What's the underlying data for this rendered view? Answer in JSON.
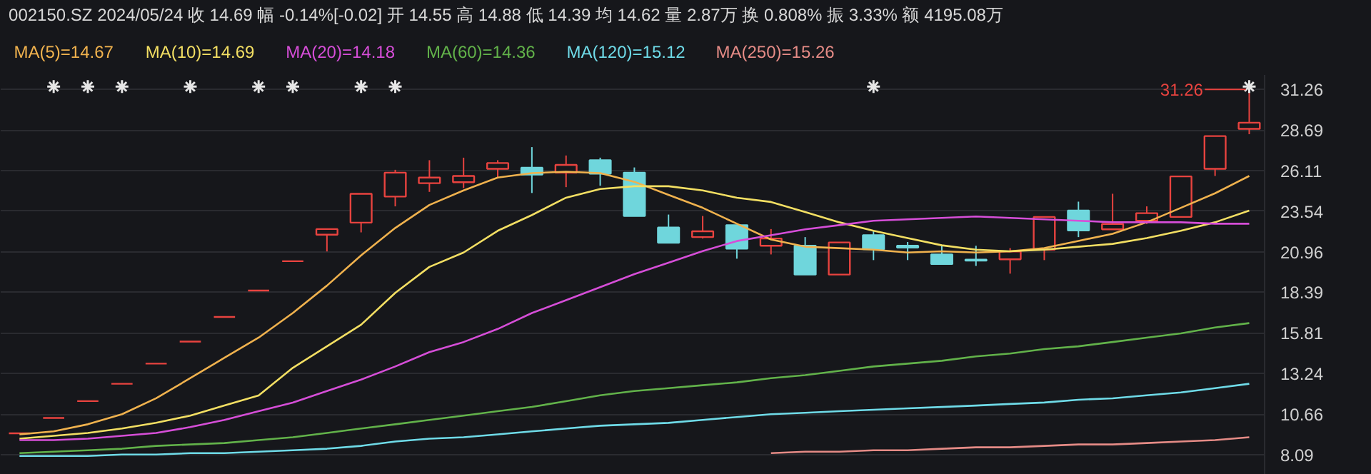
{
  "chart_data": {
    "type": "candlestick",
    "title": "002150.SZ   2024/05/24   收 14.69   幅 -0.14%[-0.02]   开 14.55   高 14.88   低 14.39   均 14.62   量 2.87万   换 0.808%   振 3.33%   额 4195.08万",
    "annotations": [
      "31.26"
    ],
    "categories": [
      null,
      null,
      null,
      null,
      null,
      null,
      null,
      null,
      null,
      null,
      null,
      null,
      null,
      null,
      null,
      null,
      null,
      null,
      null,
      null,
      null,
      null,
      null,
      null,
      null,
      null,
      null,
      null,
      null,
      null,
      null,
      null,
      null,
      null,
      null,
      null,
      null
    ],
    "ohlc": [
      [
        9.44,
        9.44,
        9.44,
        9.44
      ],
      [
        10.41,
        10.41,
        10.41,
        10.41
      ],
      [
        11.48,
        11.48,
        11.48,
        11.48
      ],
      [
        12.58,
        12.58,
        12.58,
        12.58
      ],
      [
        13.86,
        13.86,
        13.86,
        13.86
      ],
      [
        15.26,
        15.26,
        15.26,
        15.26
      ],
      [
        16.82,
        16.82,
        16.82,
        16.82
      ],
      [
        18.5,
        18.5,
        18.5,
        18.5
      ],
      [
        20.36,
        20.36,
        20.36,
        20.36
      ],
      [
        22.04,
        22.4,
        20.98,
        22.4
      ],
      [
        22.81,
        24.64,
        22.19,
        24.64
      ],
      [
        24.46,
        26.16,
        23.84,
        25.98
      ],
      [
        25.31,
        26.77,
        24.76,
        25.67
      ],
      [
        25.37,
        26.93,
        25.0,
        25.77
      ],
      [
        26.22,
        26.77,
        25.61,
        26.59
      ],
      [
        26.29,
        27.6,
        24.69,
        25.86
      ],
      [
        25.98,
        27.07,
        25.06,
        26.47
      ],
      [
        26.77,
        26.93,
        25.15,
        25.92
      ],
      [
        25.98,
        26.31,
        23.23,
        23.23
      ],
      [
        22.5,
        23.32,
        21.53,
        21.53
      ],
      [
        21.89,
        23.23,
        21.8,
        22.26
      ],
      [
        22.65,
        22.65,
        20.52,
        21.16
      ],
      [
        21.34,
        22.4,
        20.79,
        21.8
      ],
      [
        21.34,
        21.89,
        19.51,
        19.51
      ],
      [
        19.51,
        21.55,
        19.51,
        21.55
      ],
      [
        22.01,
        22.31,
        20.43,
        21.12
      ],
      [
        21.34,
        21.58,
        20.43,
        21.23
      ],
      [
        20.79,
        21.34,
        20.18,
        20.18
      ],
      [
        20.46,
        21.34,
        20.06,
        20.4
      ],
      [
        20.48,
        21.19,
        19.57,
        20.98
      ],
      [
        21.09,
        23.17,
        20.43,
        23.17
      ],
      [
        23.57,
        24.14,
        21.89,
        22.31
      ],
      [
        22.38,
        24.64,
        22.38,
        22.72
      ],
      [
        22.93,
        23.84,
        22.72,
        23.41
      ],
      [
        23.17,
        25.74,
        23.17,
        25.74
      ],
      [
        26.22,
        28.3,
        25.77,
        28.3
      ],
      [
        28.76,
        31.26,
        28.42,
        29.15
      ]
    ],
    "colors": [
      "#e8433f",
      "#e8433f",
      "#e8433f",
      "#e8433f",
      "#e8433f",
      "#e8433f",
      "#e8433f",
      "#e8433f",
      "#e8433f",
      "#e8433f",
      "#e8433f",
      "#e8433f",
      "#e8433f",
      "#e8433f",
      "#e8433f",
      "#6fd6dc",
      "#e8433f",
      "#6fd6dc",
      "#6fd6dc",
      "#6fd6dc",
      "#e8433f",
      "#6fd6dc",
      "#e8433f",
      "#6fd6dc",
      "#e8433f",
      "#6fd6dc",
      "#6fd6dc",
      "#6fd6dc",
      "#6fd6dc",
      "#e8433f",
      "#e8433f",
      "#6fd6dc",
      "#e8433f",
      "#e8433f",
      "#e8433f",
      "#e8433f",
      "#e8433f"
    ],
    "series": [
      {
        "type": "line",
        "name": "MA(5)=14.67",
        "color": "#f0b24e",
        "values": [
          9.37,
          9.56,
          10.01,
          10.65,
          11.66,
          12.94,
          14.23,
          15.51,
          17.07,
          18.81,
          20.73,
          22.47,
          23.93,
          24.85,
          25.67,
          25.95,
          26.04,
          25.95,
          25.4,
          24.57,
          23.75,
          22.74,
          21.74,
          21.28,
          21.19,
          21.09,
          20.91,
          20.99,
          20.91,
          20.99,
          21.19,
          21.65,
          22.1,
          22.83,
          23.75,
          24.67,
          25.77
        ]
      },
      {
        "type": "line",
        "name": "MA(10)=14.69",
        "color": "#f3df63",
        "values": [
          9.1,
          9.28,
          9.46,
          9.74,
          10.11,
          10.56,
          11.2,
          11.84,
          13.59,
          14.96,
          16.33,
          18.35,
          20.0,
          20.91,
          22.29,
          23.29,
          24.39,
          24.94,
          25.12,
          25.12,
          24.85,
          24.39,
          24.12,
          23.48,
          22.83,
          22.29,
          21.83,
          21.37,
          21.09,
          20.99,
          21.09,
          21.28,
          21.46,
          21.83,
          22.29,
          22.83,
          23.57
        ]
      },
      {
        "type": "line",
        "name": "MA(20)=14.18",
        "color": "#d64ed8",
        "values": [
          9.01,
          9.01,
          9.1,
          9.28,
          9.46,
          9.83,
          10.29,
          10.84,
          11.39,
          12.12,
          12.85,
          13.68,
          14.59,
          15.23,
          16.06,
          17.07,
          17.89,
          18.71,
          19.54,
          20.27,
          21.0,
          21.64,
          22.01,
          22.38,
          22.65,
          22.93,
          23.02,
          23.11,
          23.2,
          23.11,
          23.02,
          22.93,
          22.83,
          22.83,
          22.83,
          22.74,
          22.74
        ]
      },
      {
        "type": "line",
        "name": "MA(60)=14.36",
        "color": "#62b24a",
        "values": [
          8.18,
          8.27,
          8.36,
          8.46,
          8.64,
          8.73,
          8.82,
          9.01,
          9.19,
          9.46,
          9.74,
          10.01,
          10.29,
          10.56,
          10.84,
          11.11,
          11.48,
          11.85,
          12.12,
          12.3,
          12.49,
          12.67,
          12.94,
          13.13,
          13.4,
          13.68,
          13.86,
          14.04,
          14.32,
          14.5,
          14.78,
          14.96,
          15.23,
          15.51,
          15.78,
          16.15,
          16.43
        ]
      },
      {
        "type": "line",
        "name": "MA(120)=15.12",
        "color": "#6fdbe8",
        "values": [
          8.0,
          8.0,
          8.0,
          8.09,
          8.09,
          8.18,
          8.18,
          8.27,
          8.36,
          8.46,
          8.64,
          8.92,
          9.1,
          9.19,
          9.37,
          9.56,
          9.74,
          9.92,
          10.01,
          10.1,
          10.29,
          10.47,
          10.65,
          10.74,
          10.84,
          10.93,
          11.02,
          11.11,
          11.2,
          11.3,
          11.39,
          11.57,
          11.66,
          11.85,
          12.03,
          12.3,
          12.58
        ]
      },
      {
        "type": "line",
        "name": "MA(250)=15.26",
        "color": "#e58b86",
        "values": [
          null,
          null,
          null,
          null,
          null,
          null,
          null,
          null,
          null,
          null,
          null,
          null,
          null,
          null,
          null,
          null,
          null,
          null,
          null,
          null,
          null,
          null,
          8.18,
          8.27,
          8.27,
          8.36,
          8.36,
          8.46,
          8.55,
          8.55,
          8.64,
          8.73,
          8.73,
          8.82,
          8.92,
          9.01,
          9.19
        ]
      },
      {
        "type": "scatter",
        "marker": "cross",
        "color": "#e6e6e6",
        "values": [
          null,
          31.44,
          31.44,
          31.44,
          null,
          31.44,
          null,
          31.44,
          31.44,
          null,
          31.44,
          31.44,
          null,
          null,
          null,
          null,
          null,
          null,
          null,
          null,
          null,
          null,
          null,
          null,
          null,
          31.44,
          null,
          null,
          null,
          null,
          null,
          null,
          null,
          null,
          null,
          null,
          31.44
        ]
      }
    ],
    "ylim": [
      6.81,
      32.18
    ],
    "yticks": [
      8.09,
      10.66,
      13.24,
      15.81,
      18.39,
      20.96,
      23.54,
      26.11,
      28.69,
      31.26
    ],
    "grid": "y",
    "legend": "top left",
    "tick_labels": "y"
  }
}
